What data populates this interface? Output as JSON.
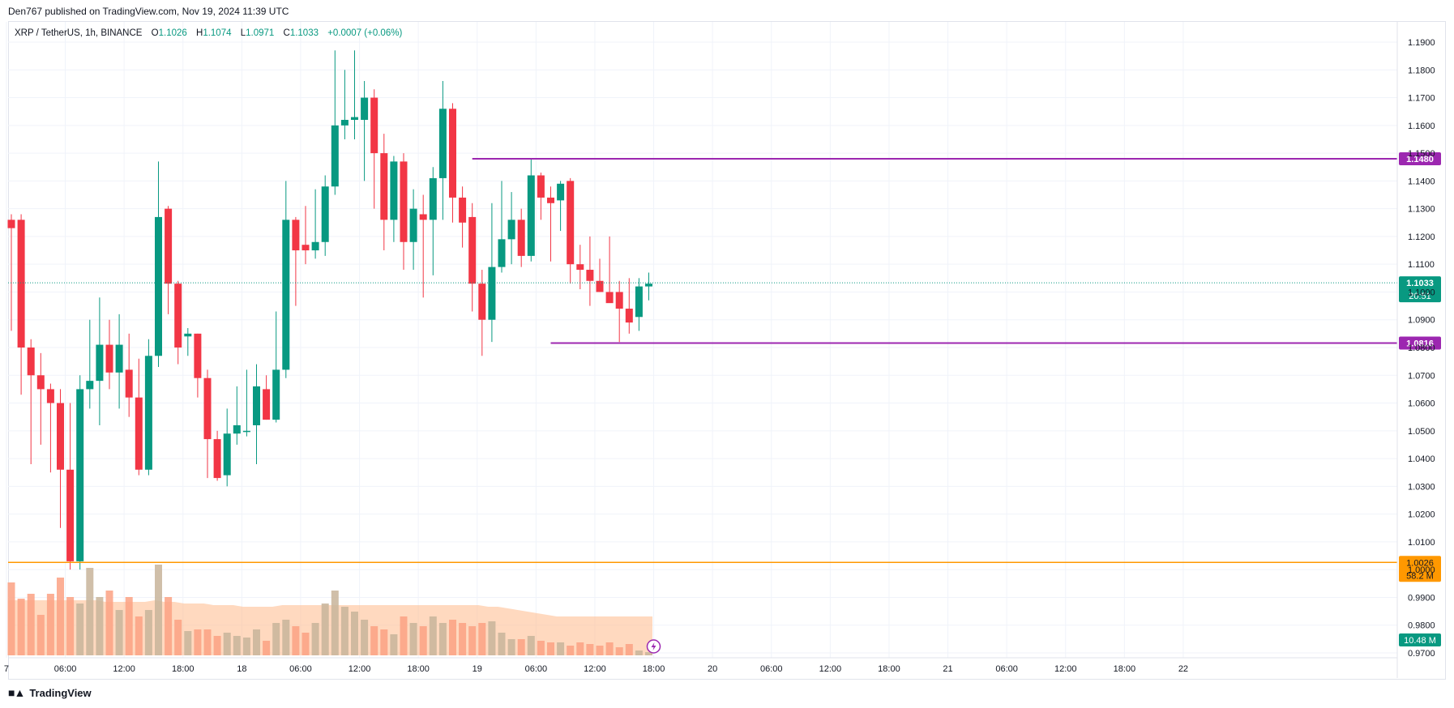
{
  "header": {
    "published": "Den767 published on TradingView.com, Nov 19, 2024 11:39 UTC"
  },
  "legend": {
    "symbol": "XRP / TetherUS, 1h, BINANCE",
    "open_label": "O",
    "open": "1.1026",
    "high_label": "H",
    "high": "1.1074",
    "low_label": "L",
    "low": "1.0971",
    "close_label": "C",
    "close": "1.1033",
    "change": "+0.0007 (+0.06%)"
  },
  "footer": {
    "brand": "TradingView"
  },
  "colors": {
    "up": "#089981",
    "down": "#f23645",
    "vol_up": "#c8b49a",
    "vol_down": "#fca183",
    "level": "#9c27b0",
    "ma": "#ff9800",
    "grid": "#f0f3fa"
  },
  "chart_data": {
    "type": "candlestick",
    "interval": "1h",
    "y_range": [
      0.97,
      1.195
    ],
    "y_ticks": [
      "1.1900",
      "1.1800",
      "1.1700",
      "1.1600",
      "1.1500",
      "1.1400",
      "1.1300",
      "1.1200",
      "1.1100",
      "1.1000",
      "1.0900",
      "1.0800",
      "1.0700",
      "1.0600",
      "1.0500",
      "1.0400",
      "1.0300",
      "1.0200",
      "1.0100",
      "1.0000",
      "0.9900",
      "0.9800",
      "0.9700"
    ],
    "x_ticks": [
      {
        "label": "7",
        "bar": -0.5
      },
      {
        "label": "06:00",
        "bar": 5.5
      },
      {
        "label": "12:00",
        "bar": 11.5
      },
      {
        "label": "18:00",
        "bar": 17.5
      },
      {
        "label": "18",
        "bar": 23.5
      },
      {
        "label": "06:00",
        "bar": 29.5
      },
      {
        "label": "12:00",
        "bar": 35.5
      },
      {
        "label": "18:00",
        "bar": 41.5
      },
      {
        "label": "19",
        "bar": 47.5
      },
      {
        "label": "06:00",
        "bar": 53.5
      },
      {
        "label": "12:00",
        "bar": 59.5
      },
      {
        "label": "18:00",
        "bar": 65.5
      },
      {
        "label": "20",
        "bar": 71.5
      },
      {
        "label": "06:00",
        "bar": 77.5
      },
      {
        "label": "12:00",
        "bar": 83.5
      },
      {
        "label": "18:00",
        "bar": 89.5
      },
      {
        "label": "21",
        "bar": 95.5
      },
      {
        "label": "06:00",
        "bar": 101.5
      },
      {
        "label": "12:00",
        "bar": 107.5
      },
      {
        "label": "18:00",
        "bar": 113.5
      },
      {
        "label": "22",
        "bar": 119.5
      }
    ],
    "candles": [
      {
        "o": 1.126,
        "h": 1.128,
        "l": 1.086,
        "c": 1.123
      },
      {
        "o": 1.126,
        "h": 1.128,
        "l": 1.063,
        "c": 1.08
      },
      {
        "o": 1.08,
        "h": 1.083,
        "l": 1.038,
        "c": 1.07
      },
      {
        "o": 1.07,
        "h": 1.078,
        "l": 1.045,
        "c": 1.065
      },
      {
        "o": 1.065,
        "h": 1.067,
        "l": 1.035,
        "c": 1.06
      },
      {
        "o": 1.06,
        "h": 1.065,
        "l": 1.015,
        "c": 1.036
      },
      {
        "o": 1.036,
        "h": 1.06,
        "l": 1.0,
        "c": 1.003
      },
      {
        "o": 1.003,
        "h": 1.07,
        "l": 1.0,
        "c": 1.065
      },
      {
        "o": 1.065,
        "h": 1.09,
        "l": 1.058,
        "c": 1.068
      },
      {
        "o": 1.068,
        "h": 1.098,
        "l": 1.052,
        "c": 1.081
      },
      {
        "o": 1.081,
        "h": 1.09,
        "l": 1.065,
        "c": 1.071
      },
      {
        "o": 1.071,
        "h": 1.092,
        "l": 1.058,
        "c": 1.081
      },
      {
        "o": 1.072,
        "h": 1.085,
        "l": 1.055,
        "c": 1.062
      },
      {
        "o": 1.062,
        "h": 1.076,
        "l": 1.034,
        "c": 1.036
      },
      {
        "o": 1.036,
        "h": 1.083,
        "l": 1.034,
        "c": 1.077
      },
      {
        "o": 1.077,
        "h": 1.147,
        "l": 1.073,
        "c": 1.127
      },
      {
        "o": 1.13,
        "h": 1.131,
        "l": 1.092,
        "c": 1.103
      },
      {
        "o": 1.103,
        "h": 1.104,
        "l": 1.074,
        "c": 1.08
      },
      {
        "o": 1.084,
        "h": 1.087,
        "l": 1.077,
        "c": 1.085
      },
      {
        "o": 1.085,
        "h": 1.085,
        "l": 1.062,
        "c": 1.069
      },
      {
        "o": 1.069,
        "h": 1.072,
        "l": 1.033,
        "c": 1.047
      },
      {
        "o": 1.047,
        "h": 1.05,
        "l": 1.032,
        "c": 1.033
      },
      {
        "o": 1.034,
        "h": 1.058,
        "l": 1.03,
        "c": 1.049
      },
      {
        "o": 1.049,
        "h": 1.066,
        "l": 1.045,
        "c": 1.052
      },
      {
        "o": 1.05,
        "h": 1.072,
        "l": 1.048,
        "c": 1.05
      },
      {
        "o": 1.052,
        "h": 1.074,
        "l": 1.038,
        "c": 1.066
      },
      {
        "o": 1.065,
        "h": 1.07,
        "l": 1.054,
        "c": 1.054
      },
      {
        "o": 1.054,
        "h": 1.093,
        "l": 1.053,
        "c": 1.072
      },
      {
        "o": 1.072,
        "h": 1.14,
        "l": 1.069,
        "c": 1.126
      },
      {
        "o": 1.126,
        "h": 1.127,
        "l": 1.095,
        "c": 1.115
      },
      {
        "o": 1.117,
        "h": 1.131,
        "l": 1.11,
        "c": 1.115
      },
      {
        "o": 1.115,
        "h": 1.137,
        "l": 1.112,
        "c": 1.118
      },
      {
        "o": 1.118,
        "h": 1.142,
        "l": 1.113,
        "c": 1.138
      },
      {
        "o": 1.138,
        "h": 1.187,
        "l": 1.135,
        "c": 1.16
      },
      {
        "o": 1.16,
        "h": 1.18,
        "l": 1.155,
        "c": 1.162
      },
      {
        "o": 1.162,
        "h": 1.187,
        "l": 1.155,
        "c": 1.163
      },
      {
        "o": 1.162,
        "h": 1.176,
        "l": 1.14,
        "c": 1.17
      },
      {
        "o": 1.17,
        "h": 1.173,
        "l": 1.13,
        "c": 1.15
      },
      {
        "o": 1.15,
        "h": 1.157,
        "l": 1.115,
        "c": 1.126
      },
      {
        "o": 1.126,
        "h": 1.149,
        "l": 1.118,
        "c": 1.147
      },
      {
        "o": 1.147,
        "h": 1.15,
        "l": 1.108,
        "c": 1.118
      },
      {
        "o": 1.118,
        "h": 1.137,
        "l": 1.108,
        "c": 1.13
      },
      {
        "o": 1.128,
        "h": 1.135,
        "l": 1.098,
        "c": 1.126
      },
      {
        "o": 1.126,
        "h": 1.145,
        "l": 1.106,
        "c": 1.141
      },
      {
        "o": 1.141,
        "h": 1.176,
        "l": 1.126,
        "c": 1.166
      },
      {
        "o": 1.166,
        "h": 1.168,
        "l": 1.125,
        "c": 1.134
      },
      {
        "o": 1.134,
        "h": 1.138,
        "l": 1.116,
        "c": 1.125
      },
      {
        "o": 1.127,
        "h": 1.132,
        "l": 1.093,
        "c": 1.103
      },
      {
        "o": 1.103,
        "h": 1.108,
        "l": 1.077,
        "c": 1.09
      },
      {
        "o": 1.09,
        "h": 1.132,
        "l": 1.082,
        "c": 1.109
      },
      {
        "o": 1.109,
        "h": 1.14,
        "l": 1.107,
        "c": 1.119
      },
      {
        "o": 1.119,
        "h": 1.136,
        "l": 1.11,
        "c": 1.126
      },
      {
        "o": 1.126,
        "h": 1.13,
        "l": 1.109,
        "c": 1.113
      },
      {
        "o": 1.113,
        "h": 1.148,
        "l": 1.111,
        "c": 1.142
      },
      {
        "o": 1.142,
        "h": 1.143,
        "l": 1.126,
        "c": 1.134
      },
      {
        "o": 1.134,
        "h": 1.138,
        "l": 1.111,
        "c": 1.132
      },
      {
        "o": 1.133,
        "h": 1.14,
        "l": 1.122,
        "c": 1.139
      },
      {
        "o": 1.14,
        "h": 1.141,
        "l": 1.103,
        "c": 1.11
      },
      {
        "o": 1.11,
        "h": 1.117,
        "l": 1.101,
        "c": 1.108
      },
      {
        "o": 1.108,
        "h": 1.12,
        "l": 1.095,
        "c": 1.104
      },
      {
        "o": 1.104,
        "h": 1.112,
        "l": 1.1,
        "c": 1.1
      },
      {
        "o": 1.1,
        "h": 1.12,
        "l": 1.097,
        "c": 1.096
      },
      {
        "o": 1.1,
        "h": 1.104,
        "l": 1.082,
        "c": 1.094
      },
      {
        "o": 1.094,
        "h": 1.105,
        "l": 1.085,
        "c": 1.089
      },
      {
        "o": 1.091,
        "h": 1.105,
        "l": 1.086,
        "c": 1.102
      },
      {
        "o": 1.102,
        "h": 1.107,
        "l": 1.097,
        "c": 1.103
      }
    ],
    "volume_ratio": [
      0.45,
      0.35,
      0.38,
      0.25,
      0.38,
      0.48,
      0.36,
      0.32,
      0.54,
      0.36,
      0.4,
      0.28,
      0.36,
      0.24,
      0.28,
      0.56,
      0.36,
      0.22,
      0.15,
      0.16,
      0.16,
      0.12,
      0.14,
      0.12,
      0.11,
      0.16,
      0.09,
      0.2,
      0.22,
      0.18,
      0.14,
      0.2,
      0.32,
      0.4,
      0.3,
      0.27,
      0.22,
      0.18,
      0.16,
      0.13,
      0.24,
      0.2,
      0.18,
      0.24,
      0.2,
      0.22,
      0.2,
      0.18,
      0.2,
      0.21,
      0.14,
      0.1,
      0.1,
      0.12,
      0.09,
      0.08,
      0.08,
      0.06,
      0.08,
      0.07,
      0.06,
      0.08,
      0.05,
      0.07,
      0.03,
      0.02
    ],
    "volume_ma_ratio": [
      0.34,
      0.34,
      0.34,
      0.34,
      0.34,
      0.34,
      0.34,
      0.34,
      0.34,
      0.34,
      0.33,
      0.33,
      0.33,
      0.33,
      0.33,
      0.34,
      0.33,
      0.33,
      0.32,
      0.32,
      0.32,
      0.31,
      0.31,
      0.31,
      0.3,
      0.3,
      0.3,
      0.3,
      0.31,
      0.31,
      0.31,
      0.31,
      0.31,
      0.31,
      0.31,
      0.31,
      0.31,
      0.31,
      0.31,
      0.31,
      0.31,
      0.31,
      0.31,
      0.31,
      0.31,
      0.31,
      0.31,
      0.31,
      0.31,
      0.3,
      0.3,
      0.29,
      0.28,
      0.27,
      0.26,
      0.25,
      0.24,
      0.24,
      0.24,
      0.24,
      0.24,
      0.24,
      0.24,
      0.24,
      0.24,
      0.24
    ],
    "levels": [
      {
        "name": "resistance",
        "value": 1.148,
        "label": "1.1480",
        "from_bar": 47
      },
      {
        "name": "support",
        "value": 1.0816,
        "label": "1.0816",
        "from_bar": 55
      }
    ],
    "current_price": {
      "label": "1.1033",
      "value": 1.1033,
      "countdown": "20:51"
    },
    "ma_line": {
      "value": 1.0026,
      "label": "1.0026",
      "sub": "58.2 M"
    },
    "volume_label": "10.48 M"
  }
}
